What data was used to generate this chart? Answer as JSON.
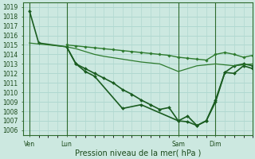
{
  "bg_color": "#cce8e0",
  "grid_color": "#b0d8d0",
  "line_colors": [
    "#1a5c20",
    "#2d7a2d",
    "#2d7a2d",
    "#2d7a2d"
  ],
  "xlabel": "Pression niveau de la mer( hPa )",
  "ylim": [
    1005.5,
    1019.5
  ],
  "yticks": [
    1006,
    1007,
    1008,
    1009,
    1010,
    1011,
    1012,
    1013,
    1014,
    1015,
    1016,
    1017,
    1018,
    1019
  ],
  "xtick_labels": [
    "Ven",
    "Lun",
    "Sam",
    "Dim"
  ],
  "xtick_positions": [
    0,
    12,
    48,
    60
  ],
  "xlim": [
    -2,
    72
  ],
  "vline_positions": [
    0,
    12,
    48,
    60
  ],
  "series": [
    {
      "x": [
        0,
        3,
        12,
        15,
        18,
        21,
        30,
        36,
        48,
        51,
        54,
        57,
        60,
        63,
        66,
        69,
        72
      ],
      "y": [
        1018.6,
        1015.2,
        1014.8,
        1013.0,
        1012.2,
        1011.7,
        1008.3,
        1008.7,
        1007.0,
        1006.9,
        1006.5,
        1007.0,
        1009.0,
        1012.1,
        1012.8,
        1013.0,
        1012.8
      ],
      "color": "#1a5c20",
      "lw": 1.2,
      "marker": "D",
      "ms": 2.0
    },
    {
      "x": [
        12,
        15,
        18,
        21,
        24,
        27,
        30,
        33,
        36,
        39,
        42,
        45,
        48,
        51,
        54,
        57,
        60,
        63,
        66,
        69,
        72
      ],
      "y": [
        1015.0,
        1014.9,
        1014.8,
        1014.7,
        1014.6,
        1014.5,
        1014.4,
        1014.3,
        1014.2,
        1014.1,
        1014.0,
        1013.9,
        1013.7,
        1013.6,
        1013.5,
        1013.4,
        1014.0,
        1014.2,
        1014.0,
        1013.7,
        1013.9
      ],
      "color": "#2d7a2d",
      "lw": 1.0,
      "marker": "D",
      "ms": 1.8
    },
    {
      "x": [
        12,
        15,
        18,
        21,
        24,
        27,
        30,
        33,
        36,
        39,
        42,
        45,
        48,
        51,
        54,
        57,
        60,
        63,
        66,
        69,
        72
      ],
      "y": [
        1014.8,
        1013.0,
        1012.5,
        1012.0,
        1011.5,
        1011.0,
        1010.3,
        1009.8,
        1009.2,
        1008.7,
        1008.2,
        1008.4,
        1007.0,
        1007.5,
        1006.5,
        1007.0,
        1009.2,
        1012.1,
        1012.0,
        1012.8,
        1012.5
      ],
      "color": "#1a5c20",
      "lw": 1.2,
      "marker": "D",
      "ms": 2.0
    },
    {
      "x": [
        0,
        12,
        15,
        18,
        21,
        24,
        30,
        36,
        42,
        48,
        54,
        60,
        66,
        72
      ],
      "y": [
        1015.2,
        1014.8,
        1014.6,
        1014.3,
        1014.0,
        1013.8,
        1013.5,
        1013.2,
        1013.0,
        1012.2,
        1012.8,
        1013.0,
        1012.8,
        1013.0
      ],
      "color": "#2d7a2d",
      "lw": 0.9,
      "marker": null,
      "ms": 0
    }
  ],
  "tick_fontsize": 5.5,
  "xlabel_fontsize": 7,
  "tick_color": "#1a4a1a",
  "spine_color": "#2d6a2d"
}
